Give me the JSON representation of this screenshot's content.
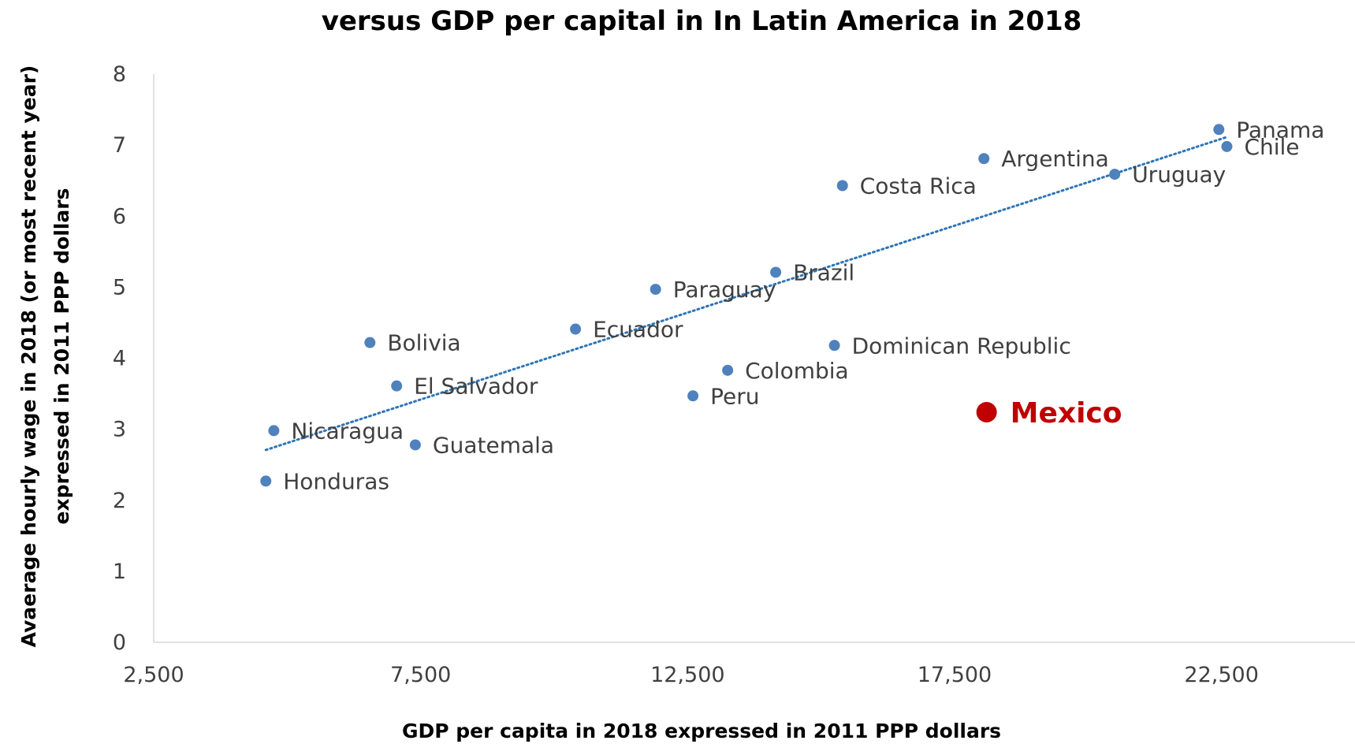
{
  "chart_data": {
    "type": "scatter",
    "title": "versus GDP per capital in In Latin America in 2018",
    "xlabel": "GDP per capita in 2018 expressed in 2011 PPP dollars",
    "ylabel_lines": [
      "Avaerage hourly wage in 2018 (or most recent year)",
      "expressed in 2011 PPP dollars"
    ],
    "xlim": [
      2500,
      25000
    ],
    "ylim": [
      0,
      8
    ],
    "x_ticks": [
      2500,
      7500,
      12500,
      17500,
      22500
    ],
    "x_tick_labels": [
      "2,500",
      "7,500",
      "12,500",
      "17,500",
      "22,500"
    ],
    "y_ticks": [
      0,
      1,
      2,
      3,
      4,
      5,
      6,
      7,
      8
    ],
    "y_tick_labels": [
      "0",
      "1",
      "2",
      "3",
      "4",
      "5",
      "6",
      "7",
      "8"
    ],
    "grid": false,
    "point_color": "#4f81bd",
    "highlight_color": "#c00000",
    "trendline": {
      "type": "linear",
      "style": "dotted",
      "color": "#2e75b6",
      "x_range": [
        4600,
        22600
      ]
    },
    "points": [
      {
        "label": "Panama",
        "x": 22450,
        "y": 7.22
      },
      {
        "label": "Chile",
        "x": 22600,
        "y": 6.98
      },
      {
        "label": "Argentina",
        "x": 18050,
        "y": 6.81
      },
      {
        "label": "Uruguay",
        "x": 20500,
        "y": 6.59
      },
      {
        "label": "Costa Rica",
        "x": 15400,
        "y": 6.43
      },
      {
        "label": "Brazil",
        "x": 14150,
        "y": 5.21
      },
      {
        "label": "Paraguay",
        "x": 11900,
        "y": 4.97
      },
      {
        "label": "Ecuador",
        "x": 10400,
        "y": 4.41
      },
      {
        "label": "Bolivia",
        "x": 6550,
        "y": 4.22
      },
      {
        "label": "Dominican Republic",
        "x": 15250,
        "y": 4.18
      },
      {
        "label": "Colombia",
        "x": 13250,
        "y": 3.83
      },
      {
        "label": "El Salvador",
        "x": 7050,
        "y": 3.61
      },
      {
        "label": "Peru",
        "x": 12600,
        "y": 3.47
      },
      {
        "label": "Nicaragua",
        "x": 4750,
        "y": 2.98
      },
      {
        "label": "Guatemala",
        "x": 7400,
        "y": 2.78
      },
      {
        "label": "Honduras",
        "x": 4600,
        "y": 2.27
      },
      {
        "label": "Mexico",
        "x": 18100,
        "y": 3.24,
        "highlight": true
      }
    ]
  }
}
